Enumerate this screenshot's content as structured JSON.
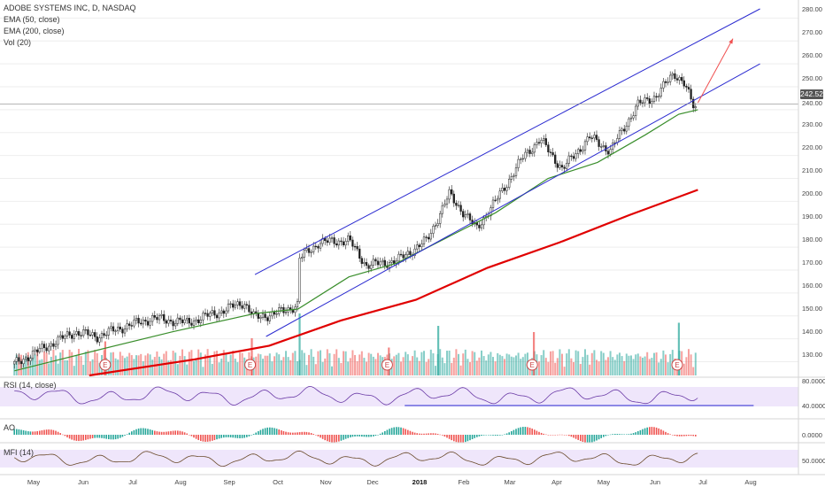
{
  "chart_data": {
    "type": "candlestick",
    "symbol_title": "ADOBE SYSTEMS INC, D, NASDAQ",
    "interval": "D",
    "indicators": [
      "EMA (50, close)",
      "EMA (200, close)",
      "Vol (20)"
    ],
    "current_price": "242.52",
    "current_price_value": 242.52,
    "y_ticks": [
      "280.00",
      "270.00",
      "260.00",
      "250.00",
      "240.00",
      "230.00",
      "220.00",
      "210.00",
      "200.00",
      "190.00",
      "180.00",
      "170.00",
      "160.00",
      "150.00",
      "140.00",
      "130.00"
    ],
    "ylim": [
      124,
      284
    ],
    "x_ticks": [
      "May",
      "Jun",
      "Jul",
      "Aug",
      "Sep",
      "Oct",
      "Nov",
      "Dec",
      "2018",
      "Feb",
      "Mar",
      "Apr",
      "May",
      "Jun",
      "Jul",
      "Aug"
    ],
    "bold_x_tick": "2018",
    "price_path": [
      {
        "date": "2017-04-24",
        "close": 129
      },
      {
        "date": "2017-05-15",
        "close": 137
      },
      {
        "date": "2017-06-01",
        "close": 143
      },
      {
        "date": "2017-06-15",
        "close": 141
      },
      {
        "date": "2017-07-01",
        "close": 145
      },
      {
        "date": "2017-07-20",
        "close": 149
      },
      {
        "date": "2017-08-10",
        "close": 147
      },
      {
        "date": "2017-09-01",
        "close": 152
      },
      {
        "date": "2017-09-15",
        "close": 156
      },
      {
        "date": "2017-09-22",
        "close": 149
      },
      {
        "date": "2017-10-10",
        "close": 152
      },
      {
        "date": "2017-10-19",
        "close": 155
      },
      {
        "date": "2017-10-20",
        "close": 175
      },
      {
        "date": "2017-11-01",
        "close": 182
      },
      {
        "date": "2017-11-20",
        "close": 183
      },
      {
        "date": "2017-12-01",
        "close": 172
      },
      {
        "date": "2017-12-20",
        "close": 174
      },
      {
        "date": "2018-01-08",
        "close": 183
      },
      {
        "date": "2018-01-22",
        "close": 203
      },
      {
        "date": "2018-02-08",
        "close": 188
      },
      {
        "date": "2018-02-20",
        "close": 200
      },
      {
        "date": "2018-03-10",
        "close": 220
      },
      {
        "date": "2018-03-20",
        "close": 227
      },
      {
        "date": "2018-04-03",
        "close": 214
      },
      {
        "date": "2018-04-20",
        "close": 228
      },
      {
        "date": "2018-05-03",
        "close": 222
      },
      {
        "date": "2018-05-20",
        "close": 242
      },
      {
        "date": "2018-06-01",
        "close": 246
      },
      {
        "date": "2018-06-12",
        "close": 256
      },
      {
        "date": "2018-06-18",
        "close": 252
      },
      {
        "date": "2018-06-25",
        "close": 240
      },
      {
        "date": "2018-06-27",
        "close": 242.52
      }
    ],
    "ema50": [
      {
        "date": "2017-04-24",
        "value": 126
      },
      {
        "date": "2017-06-15",
        "value": 135
      },
      {
        "date": "2017-08-01",
        "value": 143
      },
      {
        "date": "2017-09-22",
        "value": 151
      },
      {
        "date": "2017-10-19",
        "value": 153
      },
      {
        "date": "2017-11-20",
        "value": 167
      },
      {
        "date": "2017-12-20",
        "value": 173
      },
      {
        "date": "2018-01-20",
        "value": 184
      },
      {
        "date": "2018-02-20",
        "value": 195
      },
      {
        "date": "2018-03-25",
        "value": 210
      },
      {
        "date": "2018-04-25",
        "value": 217
      },
      {
        "date": "2018-05-25",
        "value": 229
      },
      {
        "date": "2018-06-15",
        "value": 238
      },
      {
        "date": "2018-06-27",
        "value": 240
      }
    ],
    "ema200": [
      {
        "date": "2017-06-10",
        "value": 124
      },
      {
        "date": "2017-08-15",
        "value": 131
      },
      {
        "date": "2017-10-01",
        "value": 137
      },
      {
        "date": "2017-11-15",
        "value": 148
      },
      {
        "date": "2018-01-01",
        "value": 157
      },
      {
        "date": "2018-02-15",
        "value": 171
      },
      {
        "date": "2018-04-01",
        "value": 182
      },
      {
        "date": "2018-05-15",
        "value": 194
      },
      {
        "date": "2018-06-27",
        "value": 205
      }
    ],
    "channel_upper": [
      {
        "date": "2017-09-22",
        "value": 168
      },
      {
        "date": "2018-08-05",
        "value": 284
      }
    ],
    "channel_lower": [
      {
        "date": "2017-09-29",
        "value": 141
      },
      {
        "date": "2018-08-05",
        "value": 260
      }
    ],
    "projection_arrow": [
      {
        "date": "2018-06-27",
        "value": 243
      },
      {
        "date": "2018-07-19",
        "value": 271
      }
    ],
    "earnings_dates": [
      "2017-06-20",
      "2017-09-19",
      "2017-12-14",
      "2018-03-15",
      "2018-06-14"
    ],
    "earnings_marker_label": "E",
    "volume_spikes": [
      {
        "date": "2017-06-20",
        "level": 0.55
      },
      {
        "date": "2017-09-20",
        "level": 0.6
      },
      {
        "date": "2017-10-20",
        "level": 1.0
      },
      {
        "date": "2017-12-15",
        "level": 0.45
      },
      {
        "date": "2018-01-15",
        "level": 0.8
      },
      {
        "date": "2018-03-16",
        "level": 0.7
      },
      {
        "date": "2018-06-15",
        "level": 0.85
      }
    ],
    "colors": {
      "up": "#26a69a",
      "down": "#ef5350",
      "ema50": "#3a8e2c",
      "ema200": "#e00000",
      "channel": "#2b2bd0",
      "projection": "#f05050",
      "rsi_line": "#6a3aa6",
      "mfi_line": "#6a4a2a",
      "indicator_band": "#efe6fb"
    }
  },
  "panes": {
    "rsi": {
      "label": "RSI (14, close)",
      "ticks": [
        "80.0000",
        "40.0000"
      ],
      "support_level": 40
    },
    "ao": {
      "label": "AO",
      "ticks": [
        "0.0000"
      ]
    },
    "mfi": {
      "label": "MFI (14)",
      "ticks": [
        "50.0000"
      ]
    }
  }
}
